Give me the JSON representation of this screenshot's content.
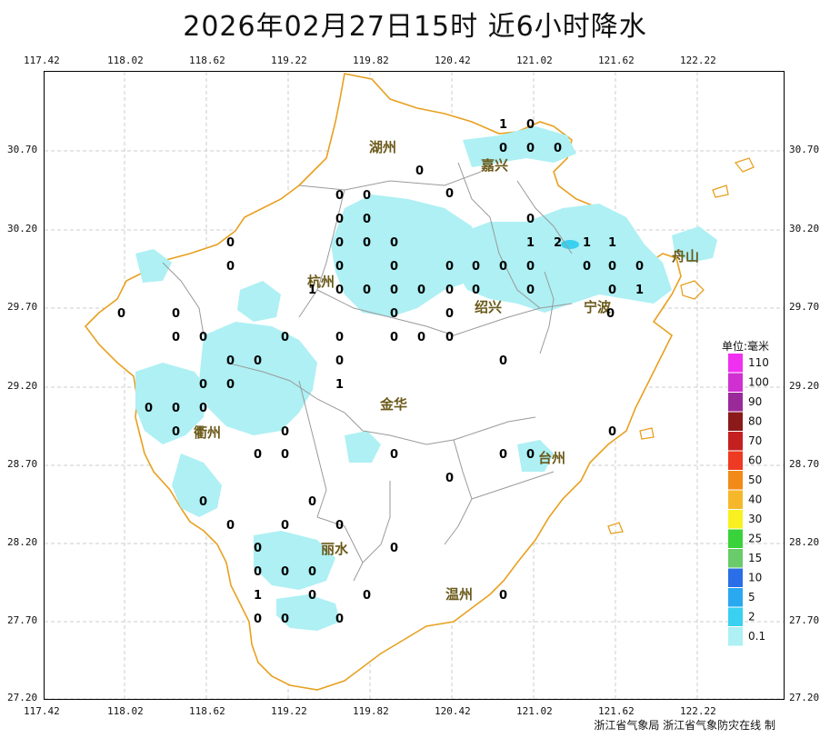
{
  "title": "2026年02月27日15时  近6小时降水",
  "footer": "浙江省气象局 浙江省气象防灾在线 制",
  "x_ticks": [
    "117.42",
    "118.02",
    "118.62",
    "119.22",
    "119.82",
    "120.42",
    "121.02",
    "121.62",
    "122.22"
  ],
  "y_ticks": [
    "30.70",
    "30.20",
    "29.70",
    "29.20",
    "28.70",
    "28.20",
    "27.70",
    "27.20"
  ],
  "cities": [
    "湖州",
    "嘉兴",
    "杭州",
    "绍兴",
    "宁波",
    "舟山",
    "衢州",
    "金华",
    "台州",
    "丽水",
    "温州"
  ],
  "legend": {
    "title": "单位:毫米",
    "items": [
      {
        "label": "110",
        "color": "#f030f0"
      },
      {
        "label": "100",
        "color": "#d030d0"
      },
      {
        "label": "90",
        "color": "#9a2a9a"
      },
      {
        "label": "80",
        "color": "#8b1a1a"
      },
      {
        "label": "70",
        "color": "#c42020"
      },
      {
        "label": "60",
        "color": "#ee3a22"
      },
      {
        "label": "50",
        "color": "#f28a1a"
      },
      {
        "label": "40",
        "color": "#f6b82a"
      },
      {
        "label": "30",
        "color": "#f8f020"
      },
      {
        "label": "25",
        "color": "#3ad23a"
      },
      {
        "label": "15",
        "color": "#6acb6a"
      },
      {
        "label": "10",
        "color": "#2a6ee8"
      },
      {
        "label": "5",
        "color": "#2aa8f0"
      },
      {
        "label": "2",
        "color": "#3ad0f0"
      },
      {
        "label": "0.1",
        "color": "#aef0f4"
      }
    ]
  },
  "station_values": [
    "1",
    "0",
    "0",
    "0",
    "0",
    "0",
    "0",
    "0",
    "0",
    "0",
    "0",
    "0",
    "0",
    "1",
    "2",
    "1",
    "1",
    "0",
    "0",
    "0",
    "0",
    "0",
    "0",
    "0",
    "0",
    "0",
    "0",
    "0",
    "0",
    "0",
    "1",
    "0",
    "1",
    "0",
    "0",
    "0",
    "0",
    "0",
    "0",
    "0",
    "0",
    "0",
    "0",
    "0",
    "0",
    "0",
    "0",
    "0",
    "0",
    "0",
    "0",
    "0",
    "0",
    "0",
    "0",
    "0",
    "1",
    "0",
    "0",
    "0",
    "0",
    "0",
    "0",
    "0",
    "0",
    "0",
    "0",
    "0",
    "0",
    "0",
    "0",
    "0",
    "0",
    "0",
    "0",
    "0",
    "0",
    "0",
    "0",
    "0",
    "0",
    "0",
    "1",
    "0",
    "0",
    "0",
    "0",
    "0"
  ]
}
